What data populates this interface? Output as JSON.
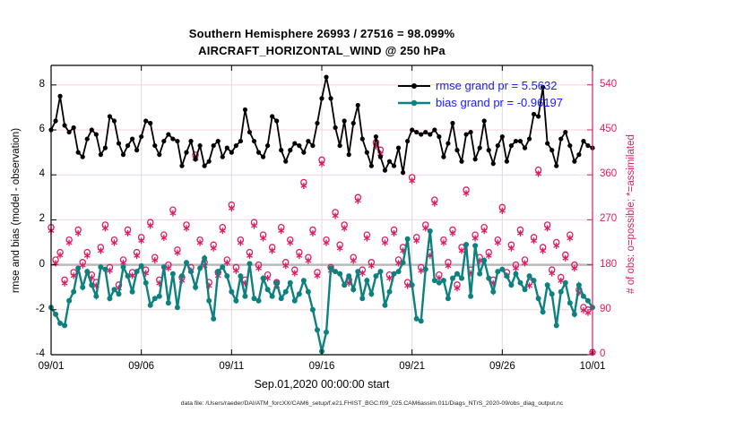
{
  "title": {
    "line1": "Southern Hemisphere 26993 / 27516 = 98.099%",
    "line2": "AIRCRAFT_HORIZONTAL_WIND @ 250 hPa"
  },
  "legend": {
    "items": [
      {
        "name": "rmse",
        "label": "rmse grand pr = 5.5632",
        "color": "#000000"
      },
      {
        "name": "bias",
        "label": "bias grand pr = -0.96197",
        "color": "#0d8080"
      }
    ],
    "text_color": "#1a1aff"
  },
  "axes": {
    "left": {
      "label": "rmse and bias (model - observation)",
      "ticks": [
        -4,
        -2,
        0,
        2,
        4,
        6,
        8
      ],
      "range": [
        -4,
        8.87
      ]
    },
    "right": {
      "label": "# of obs: o=possible; *=assimilated",
      "ticks": [
        0,
        90,
        180,
        270,
        360,
        450,
        540
      ],
      "range": [
        0,
        579
      ],
      "color": "#de1b63"
    },
    "x": {
      "tick_labels": [
        "09/01",
        "09/06",
        "09/11",
        "09/16",
        "09/21",
        "09/26",
        "10/01"
      ],
      "tick_days": [
        0,
        5,
        10,
        15,
        20,
        25,
        30
      ],
      "label": "Sep.01,2020 00:00:00 start",
      "range_days": [
        0,
        30
      ]
    }
  },
  "footer": "data file: /Users/raeder/DAI/ATM_forcXX/CAM6_setup/f.e21.FHIST_BGC.f09_025.CAM6assim.011/Diags_NTrS_2020-09/obs_diag_output.nc",
  "colors": {
    "rmse_line": "#000000",
    "bias_line": "#0d8080",
    "obs_marker": "#de1b63",
    "grid_horizontal": "#f7d2de",
    "grid_vertical": "#dcdcdc",
    "zero_line": "#b9b9b9",
    "legend_text": "#1a1aff"
  },
  "chart_data": {
    "type": "line",
    "title": "Southern Hemisphere 26993 / 27516 = 98.099% — AIRCRAFT_HORIZONTAL_WIND @ 250 hPa",
    "xlabel": "Sep.01,2020 00:00:00 start",
    "ylabel_left": "rmse and bias (model - observation)",
    "ylabel_right": "# of obs: o=possible; *=assimilated",
    "x_start_day": 0,
    "x_step_days": 0.25,
    "x_range_days": [
      0,
      30
    ],
    "ylim_left": [
      -4,
      8.87
    ],
    "ylim_right": [
      0,
      579
    ],
    "grid": true,
    "legend_position": "upper right",
    "series": [
      {
        "name": "rmse",
        "axis": "left",
        "style": "line-dot",
        "color": "#000000",
        "values": [
          6.0,
          6.4,
          7.5,
          6.2,
          5.9,
          6.1,
          5.0,
          4.8,
          5.6,
          6.0,
          5.8,
          4.9,
          5.2,
          6.6,
          6.4,
          5.4,
          4.9,
          5.3,
          5.6,
          5.1,
          5.7,
          6.4,
          6.3,
          5.3,
          4.9,
          5.5,
          5.8,
          5.6,
          5.5,
          4.4,
          5.0,
          5.5,
          4.7,
          5.3,
          4.4,
          4.6,
          5.3,
          5.5,
          4.8,
          5.2,
          5.0,
          5.3,
          5.5,
          6.9,
          5.9,
          5.5,
          5.0,
          4.8,
          5.3,
          6.6,
          6.4,
          5.1,
          4.6,
          5.1,
          5.4,
          5.3,
          5.0,
          5.5,
          5.3,
          6.3,
          7.4,
          8.35,
          7.4,
          6.1,
          5.3,
          6.4,
          4.9,
          6.3,
          7.1,
          5.6,
          5.0,
          4.4,
          5.7,
          4.8,
          4.2,
          4.6,
          4.4,
          5.2,
          4.1,
          5.5,
          6.0,
          5.9,
          5.8,
          5.9,
          5.8,
          6.0,
          5.7,
          4.8,
          5.4,
          6.3,
          5.1,
          4.6,
          5.8,
          5.9,
          4.7,
          5.2,
          6.4,
          5.1,
          4.5,
          5.3,
          5.7,
          4.6,
          5.3,
          5.5,
          5.5,
          5.2,
          5.6,
          6.7,
          6.6,
          7.9,
          5.4,
          5.1,
          4.4,
          5.6,
          5.9,
          5.3,
          4.6,
          4.9,
          5.5,
          5.3,
          5.2
        ]
      },
      {
        "name": "bias",
        "axis": "left",
        "style": "line-dot",
        "color": "#0d8080",
        "values": [
          -1.9,
          -2.2,
          -2.6,
          -2.7,
          -1.6,
          -1.2,
          -0.15,
          -1.0,
          -0.3,
          -0.9,
          -1.4,
          -0.1,
          -0.2,
          -1.5,
          -1.1,
          -1.3,
          -0.1,
          -0.5,
          -1.2,
          -0.3,
          -0.05,
          -0.8,
          -1.8,
          -1.5,
          -1.4,
          -0.1,
          -1.7,
          -0.4,
          -1.9,
          -0.5,
          0.1,
          -0.3,
          -1.0,
          -0.15,
          0.3,
          -1.6,
          -2.4,
          -0.3,
          -0.1,
          -0.5,
          -1.2,
          -1.6,
          -0.5,
          -1.4,
          0.05,
          -1.5,
          -1.6,
          -0.6,
          -1.1,
          -1.4,
          -0.8,
          -1.5,
          -1.2,
          -0.8,
          -1.6,
          -1.3,
          -0.7,
          -1.2,
          -2.0,
          -2.9,
          -3.85,
          -3.0,
          -0.15,
          -0.3,
          -0.4,
          -0.9,
          -0.5,
          -1.1,
          -0.3,
          -1.5,
          -0.7,
          -1.3,
          -0.5,
          -0.3,
          -1.8,
          -1.2,
          -0.4,
          -0.3,
          0.1,
          1.15,
          -0.9,
          -2.4,
          -2.5,
          -0.2,
          1.5,
          -0.7,
          -0.8,
          -0.7,
          -1.5,
          -0.6,
          -0.4,
          -0.6,
          0.9,
          -1.4,
          0.85,
          -0.4,
          0.2,
          -0.6,
          -1.2,
          -0.3,
          -0.2,
          -0.5,
          -0.9,
          -0.4,
          -0.8,
          -1.1,
          -0.5,
          -0.7,
          -1.5,
          -2.1,
          -0.9,
          -1.3,
          -2.7,
          -1.2,
          -0.8,
          -1.7,
          -2.2,
          -0.9,
          -1.4,
          -1.6,
          -1.9
        ]
      },
      {
        "name": "possible",
        "axis": "right",
        "style": "marker-o",
        "color": "#de1b63",
        "values": [
          255,
          190,
          205,
          150,
          230,
          165,
          250,
          185,
          205,
          160,
          145,
          215,
          260,
          175,
          230,
          140,
          190,
          250,
          165,
          205,
          235,
          170,
          265,
          195,
          150,
          240,
          180,
          290,
          210,
          155,
          260,
          175,
          400,
          230,
          185,
          145,
          220,
          165,
          255,
          190,
          300,
          175,
          230,
          150,
          205,
          265,
          180,
          240,
          160,
          215,
          145,
          255,
          185,
          230,
          170,
          205,
          345,
          195,
          250,
          165,
          390,
          230,
          175,
          285,
          220,
          260,
          150,
          195,
          315,
          170,
          240,
          185,
          425,
          410,
          230,
          160,
          250,
          190,
          215,
          145,
          355,
          235,
          175,
          260,
          205,
          310,
          160,
          230,
          185,
          250,
          140,
          215,
          330,
          170,
          240,
          195,
          255,
          205,
          150,
          230,
          295,
          165,
          220,
          180,
          250,
          190,
          145,
          235,
          370,
          215,
          260,
          170,
          225,
          155,
          200,
          240,
          180,
          130,
          95,
          90,
          5
        ]
      },
      {
        "name": "assimilated",
        "axis": "right",
        "style": "marker-star",
        "color": "#de1b63",
        "values": [
          248,
          183,
          199,
          143,
          224,
          158,
          243,
          179,
          198,
          154,
          138,
          208,
          253,
          168,
          224,
          133,
          184,
          243,
          158,
          198,
          228,
          163,
          258,
          189,
          143,
          234,
          173,
          283,
          204,
          148,
          253,
          168,
          392,
          224,
          178,
          138,
          213,
          158,
          248,
          184,
          293,
          168,
          224,
          143,
          198,
          258,
          173,
          233,
          153,
          208,
          138,
          248,
          178,
          224,
          163,
          198,
          338,
          188,
          243,
          158,
          382,
          224,
          168,
          278,
          213,
          253,
          143,
          188,
          308,
          163,
          233,
          178,
          417,
          402,
          224,
          153,
          243,
          183,
          208,
          138,
          348,
          228,
          168,
          253,
          198,
          303,
          153,
          224,
          178,
          243,
          133,
          208,
          323,
          163,
          233,
          188,
          248,
          198,
          143,
          224,
          288,
          158,
          213,
          173,
          243,
          183,
          138,
          228,
          362,
          208,
          253,
          163,
          218,
          148,
          193,
          233,
          173,
          124,
          89,
          84,
          4
        ]
      }
    ]
  }
}
